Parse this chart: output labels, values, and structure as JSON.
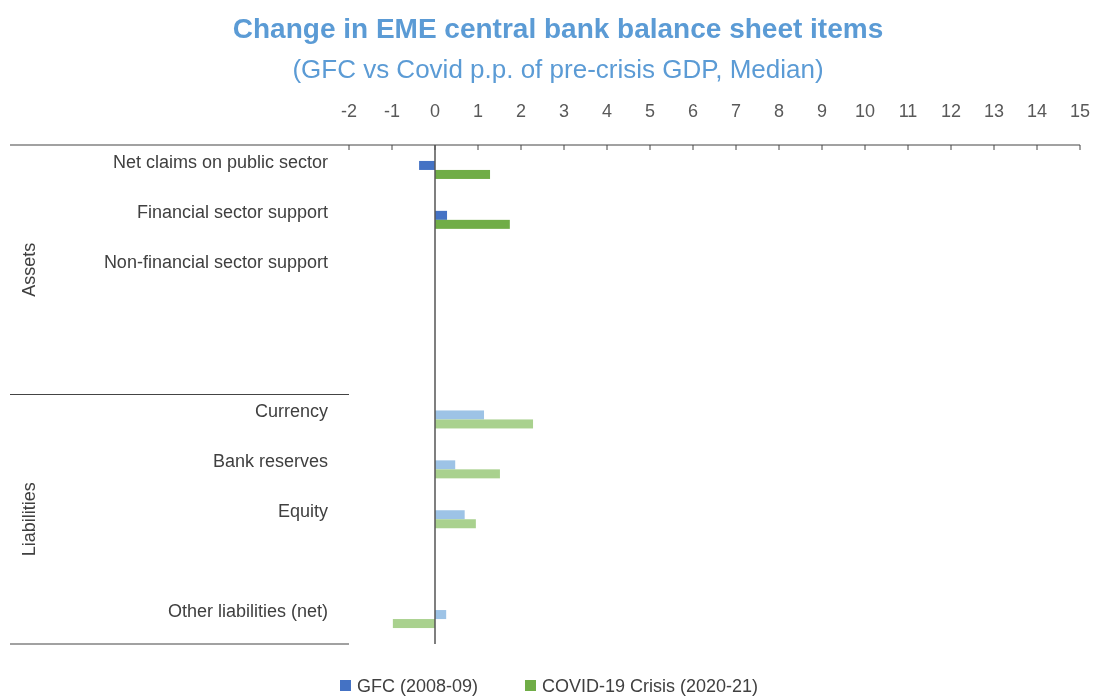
{
  "chart_data": {
    "type": "bar",
    "orientation": "horizontal",
    "title": "Change in EME central bank balance sheet items",
    "subtitle": "(GFC vs Covid p.p. of pre-crisis GDP, Median)",
    "categories": [
      "Net claims on public sector",
      "Financial sector support",
      "Non-financial sector support",
      null,
      null,
      "Currency",
      "Bank reserves",
      "Equity",
      null,
      "Other liabilities (net)"
    ],
    "series": [
      {
        "name": "GFC (2008-09)",
        "color": "#4472c4",
        "colors": [
          "#4472c4",
          "#4472c4",
          null,
          null,
          null,
          "#9dc3e6",
          "#9dc3e6",
          "#9dc3e6",
          null,
          "#9dc3e6"
        ],
        "values": [
          -0.37,
          0.28,
          null,
          null,
          null,
          1.14,
          0.47,
          0.69,
          null,
          0.26
        ]
      },
      {
        "name": "COVID-19 Crisis (2020-21)",
        "color": "#70ad47",
        "colors": [
          "#70ad47",
          "#70ad47",
          null,
          null,
          null,
          "#a9d18e",
          "#a9d18e",
          "#a9d18e",
          null,
          "#a9d18e"
        ],
        "values": [
          1.28,
          1.74,
          null,
          null,
          null,
          2.28,
          1.51,
          0.95,
          null,
          -0.98
        ]
      }
    ],
    "xlim": [
      -2,
      15
    ],
    "xticks": [
      -2,
      -1,
      0,
      1,
      2,
      3,
      4,
      5,
      6,
      7,
      8,
      9,
      10,
      11,
      12,
      13,
      14,
      15
    ],
    "annotations": [
      "Assets",
      "Liabilities"
    ],
    "legend": "bottom",
    "grid": false
  }
}
